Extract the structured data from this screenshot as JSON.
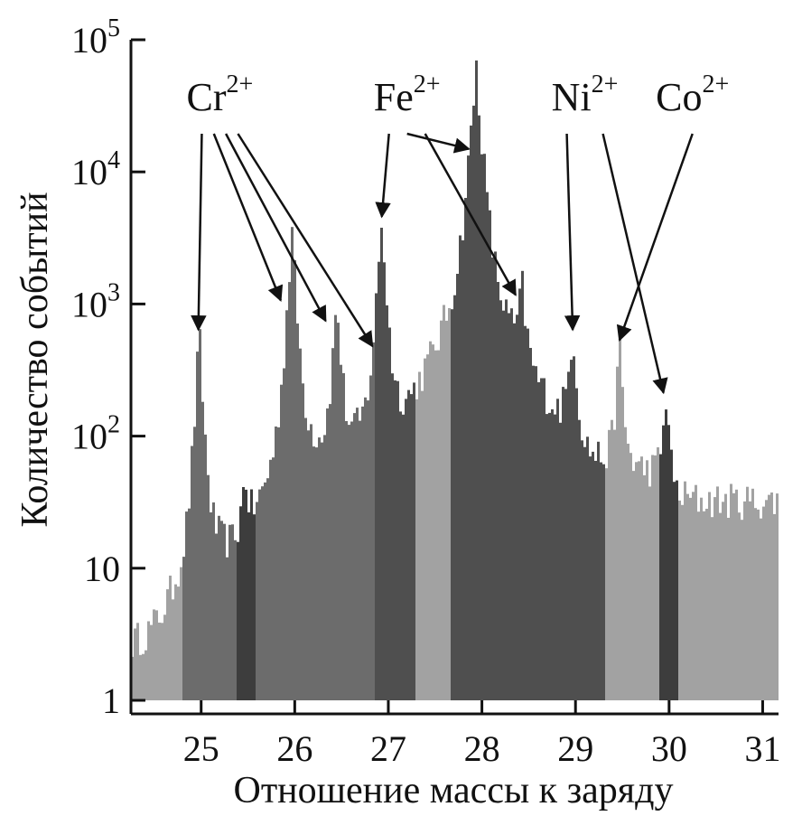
{
  "chart_data": {
    "type": "bar",
    "xlabel": "Отношение массы к заряду",
    "ylabel": "Количество событий",
    "xlim": [
      24.25,
      31.15
    ],
    "ylim": [
      1,
      100000
    ],
    "log_y": true,
    "x_ticks": [
      {
        "value": 25,
        "label": "25"
      },
      {
        "value": 26,
        "label": "26"
      },
      {
        "value": 27,
        "label": "27"
      },
      {
        "value": 28,
        "label": "28"
      },
      {
        "value": 29,
        "label": "29"
      },
      {
        "value": 30,
        "label": "30"
      },
      {
        "value": 31,
        "label": "31"
      }
    ],
    "y_ticks": [
      {
        "value": 1,
        "base": "1",
        "exp": ""
      },
      {
        "value": 10,
        "base": "10",
        "exp": ""
      },
      {
        "value": 100,
        "base": "10",
        "exp": "2"
      },
      {
        "value": 1000,
        "base": "10",
        "exp": "3"
      },
      {
        "value": 10000,
        "base": "10",
        "exp": "4"
      },
      {
        "value": 100000,
        "base": "10",
        "exp": "5"
      }
    ],
    "colors": {
      "background": "#adadad",
      "light": "#a2a2a2",
      "medium": "#6c6c6c",
      "dark": "#4f4f4f",
      "darkest": "#3d3d3d"
    },
    "bands": [
      {
        "x0": 24.25,
        "x1": 24.8,
        "shade": "light"
      },
      {
        "x0": 24.8,
        "x1": 25.38,
        "shade": "medium"
      },
      {
        "x0": 25.38,
        "x1": 25.58,
        "shade": "darkest"
      },
      {
        "x0": 25.58,
        "x1": 26.35,
        "shade": "medium"
      },
      {
        "x0": 26.36,
        "x1": 26.75,
        "shade": "medium"
      },
      {
        "x0": 26.75,
        "x1": 26.85,
        "shade": "medium"
      },
      {
        "x0": 26.85,
        "x1": 27.3,
        "shade": "dark"
      },
      {
        "x0": 27.3,
        "x1": 27.68,
        "shade": "light"
      },
      {
        "x0": 27.68,
        "x1": 28.88,
        "shade": "dark"
      },
      {
        "x0": 28.89,
        "x1": 29.32,
        "shade": "dark"
      },
      {
        "x0": 29.32,
        "x1": 29.58,
        "shade": "light"
      },
      {
        "x0": 29.58,
        "x1": 29.9,
        "shade": "light"
      },
      {
        "x0": 29.9,
        "x1": 30.1,
        "shade": "darkest"
      },
      {
        "x0": 30.1,
        "x1": 31.15,
        "shade": "light"
      }
    ],
    "baselines": [
      {
        "x0": 24.25,
        "x1": 25.0,
        "level": 2.5
      },
      {
        "x0": 25.0,
        "x1": 26.0,
        "level": 8
      },
      {
        "x0": 26.0,
        "x1": 27.3,
        "level": 40
      },
      {
        "x0": 27.3,
        "x1": 28.0,
        "level": 45
      },
      {
        "x0": 28.0,
        "x1": 29.0,
        "level": 80
      },
      {
        "x0": 29.0,
        "x1": 30.0,
        "level": 50
      },
      {
        "x0": 30.0,
        "x1": 31.15,
        "level": 32
      }
    ],
    "peaks": [
      {
        "x": 24.98,
        "height": 600,
        "width": 0.03
      },
      {
        "x": 25.47,
        "height": 35,
        "width": 0.03
      },
      {
        "x": 25.97,
        "height": 3500,
        "width": 0.035
      },
      {
        "x": 26.45,
        "height": 1000,
        "width": 0.035
      },
      {
        "x": 26.93,
        "height": 4300,
        "width": 0.035
      },
      {
        "x": 27.94,
        "height": 60000,
        "width": 0.045
      },
      {
        "x": 28.43,
        "height": 1000,
        "width": 0.035
      },
      {
        "x": 28.97,
        "height": 550,
        "width": 0.035
      },
      {
        "x": 29.47,
        "height": 450,
        "width": 0.03
      },
      {
        "x": 29.97,
        "height": 150,
        "width": 0.03
      }
    ],
    "annotations": [
      {
        "ion": "Cr",
        "charge": "2+",
        "label_x": 25.2,
        "label_y": 750,
        "arrows": [
          {
            "x": 24.97,
            "y": 600
          },
          {
            "x": 25.85,
            "y": 1000
          },
          {
            "x": 26.33,
            "y": 700
          },
          {
            "x": 26.83,
            "y": 450
          }
        ]
      },
      {
        "ion": "Fe",
        "charge": "2+",
        "label_x": 27.2,
        "label_y": 750,
        "arrows": [
          {
            "x": 26.93,
            "y": 4300
          },
          {
            "x": 27.86,
            "y": 14000
          },
          {
            "x": 28.36,
            "y": 1100
          }
        ]
      },
      {
        "ion": "Ni",
        "charge": "2+",
        "label_x": 29.1,
        "label_y": 750,
        "arrows": [
          {
            "x": 28.97,
            "y": 600
          },
          {
            "x": 29.94,
            "y": 200
          }
        ]
      },
      {
        "ion": "Co",
        "charge": "2+",
        "label_x": 30.25,
        "label_y": 750,
        "arrows": [
          {
            "x": 29.47,
            "y": 500
          }
        ]
      }
    ]
  }
}
